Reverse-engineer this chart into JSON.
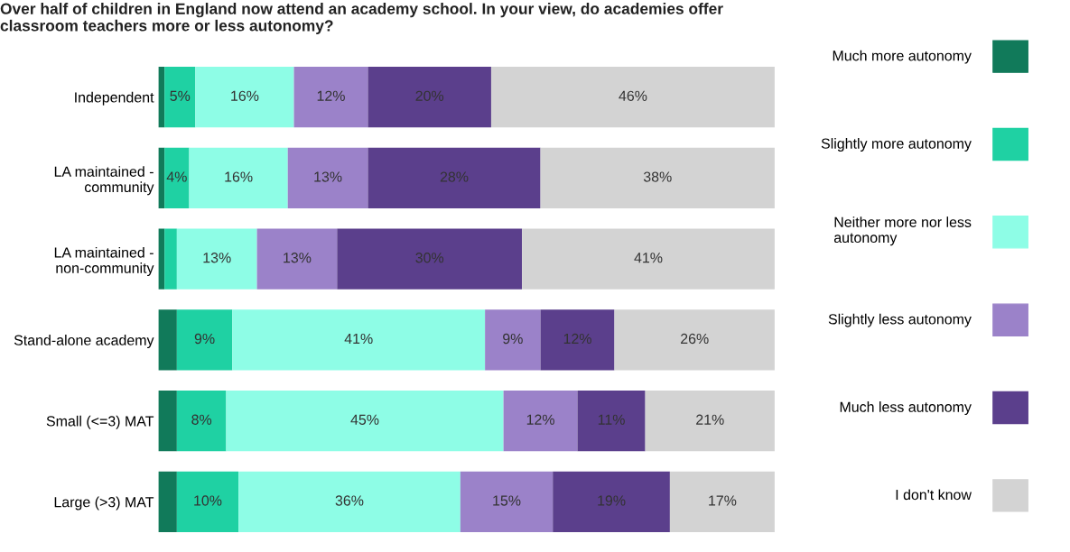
{
  "chart_data": {
    "type": "bar",
    "orientation": "horizontal",
    "stacked": true,
    "title": "Over half of children in England now attend an academy school. In your view, do academies offer\nclassroom teachers more or less autonomy?",
    "categories": [
      "Independent",
      "LA maintained -\ncommunity",
      "LA maintained -\nnon-community",
      "Stand-alone academy",
      "Small (<=3) MAT",
      "Large (>3) MAT"
    ],
    "series": [
      {
        "name": "Much more autonomy",
        "color": "#117a5a",
        "values": [
          1,
          1,
          1,
          3,
          3,
          3
        ],
        "value_labels": [
          null,
          null,
          null,
          null,
          null,
          null
        ]
      },
      {
        "name": "Slightly more autonomy",
        "color": "#1fd1a3",
        "values": [
          5,
          4,
          2,
          9,
          8,
          10
        ],
        "value_labels": [
          "5%",
          "4%",
          null,
          "9%",
          "8%",
          "10%"
        ]
      },
      {
        "name": "Neither more nor less\nautonomy",
        "color": "#8efde6",
        "values": [
          16,
          16,
          13,
          41,
          45,
          36
        ],
        "value_labels": [
          "16%",
          "16%",
          "13%",
          "41%",
          "45%",
          "36%"
        ]
      },
      {
        "name": "Slightly less autonomy",
        "color": "#9b82c9",
        "values": [
          12,
          13,
          13,
          9,
          12,
          15
        ],
        "value_labels": [
          "12%",
          "13%",
          "13%",
          "9%",
          "12%",
          "15%"
        ]
      },
      {
        "name": "Much less autonomy",
        "color": "#5b3f8c",
        "values": [
          20,
          28,
          30,
          12,
          11,
          19
        ],
        "value_labels": [
          "20%",
          "28%",
          "30%",
          "12%",
          "11%",
          "19%"
        ]
      },
      {
        "name": "I don't know",
        "color": "#d3d3d3",
        "values": [
          46,
          38,
          41,
          26,
          21,
          17
        ],
        "value_labels": [
          "46%",
          "38%",
          "41%",
          "26%",
          "21%",
          "17%"
        ]
      }
    ],
    "legend": "right",
    "tick_labels": "y",
    "grid": false
  }
}
